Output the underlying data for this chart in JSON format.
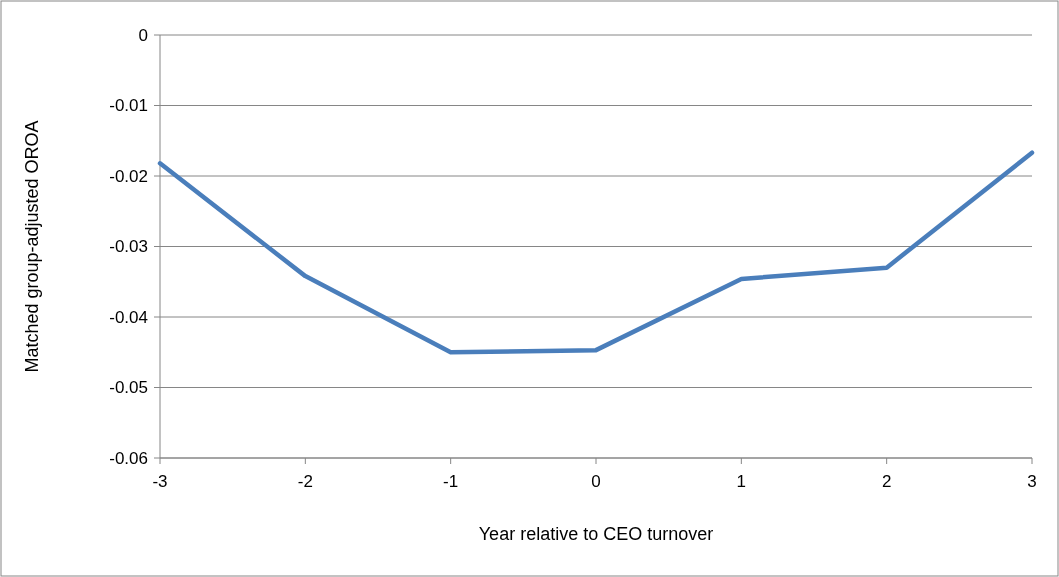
{
  "chart_data": {
    "type": "line",
    "xlabel": "Year relative to CEO turnover",
    "ylabel": "Matched group-adjusted OROA",
    "x": [
      -3,
      -2,
      -1,
      0,
      1,
      2,
      3
    ],
    "series": [
      {
        "color": "#4a7ebb",
        "values": [
          -0.0182,
          -0.0342,
          -0.045,
          -0.0447,
          -0.0346,
          -0.033,
          -0.0167
        ]
      }
    ],
    "xlim": [
      -3,
      3
    ],
    "xticks": [
      -3,
      -2,
      -1,
      0,
      1,
      2,
      3
    ],
    "ylim": [
      -0.06,
      0
    ],
    "yticks": [
      -0.06,
      -0.05,
      -0.04,
      -0.03,
      -0.02,
      -0.01,
      0
    ],
    "grid": "y",
    "marker": "none",
    "line_style": "solid"
  }
}
